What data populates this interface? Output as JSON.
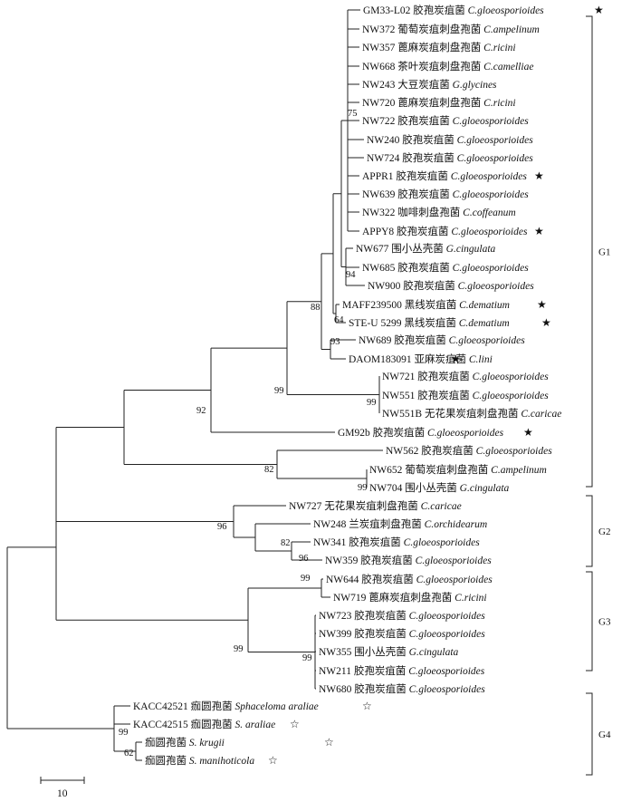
{
  "taxa": [
    {
      "id": "t0",
      "code": "GM33-L02",
      "cn": "胶孢炭疽菌",
      "sp": "C.gloeosporioides",
      "star": "★"
    },
    {
      "id": "t1",
      "code": "NW372",
      "cn": "葡萄炭疽刺盘孢菌",
      "sp": "C.ampelinum",
      "star": ""
    },
    {
      "id": "t2",
      "code": "NW357",
      "cn": "蓖麻炭疽刺盘孢菌",
      "sp": "C.ricini",
      "star": ""
    },
    {
      "id": "t3",
      "code": "NW668",
      "cn": "茶叶炭疽刺盘孢菌",
      "sp": "C.camelliae",
      "star": ""
    },
    {
      "id": "t4",
      "code": "NW243",
      "cn": "大豆炭疽菌",
      "sp": "G.glycines",
      "star": ""
    },
    {
      "id": "t5",
      "code": "NW720",
      "cn": "蓖麻炭疽刺盘孢菌",
      "sp": "C.ricini",
      "star": ""
    },
    {
      "id": "t6",
      "code": "NW722",
      "cn": "胶孢炭疽菌",
      "sp": "C.gloeosporioides",
      "star": ""
    },
    {
      "id": "t7",
      "code": "NW240",
      "cn": "胶孢炭疽菌",
      "sp": "C.gloeosporioides",
      "star": ""
    },
    {
      "id": "t8",
      "code": "NW724",
      "cn": "胶孢炭疽菌",
      "sp": "C.gloeosporioides",
      "star": ""
    },
    {
      "id": "t9",
      "code": "APPR1",
      "cn": "胶孢炭疽菌",
      "sp": "C.gloeosporioides",
      "star": "★"
    },
    {
      "id": "t10",
      "code": "NW639",
      "cn": "胶孢炭疽菌",
      "sp": "C.gloeosporioides",
      "star": ""
    },
    {
      "id": "t11",
      "code": "NW322",
      "cn": "咖啡刺盘孢菌",
      "sp": "C.coffeanum",
      "star": ""
    },
    {
      "id": "t12",
      "code": "APPY8",
      "cn": "胶孢炭疽菌",
      "sp": "C.gloeosporioides",
      "star": "★"
    },
    {
      "id": "t13",
      "code": "NW677",
      "cn": "围小丛壳菌",
      "sp": "G.cingulata",
      "star": ""
    },
    {
      "id": "t14",
      "code": "NW685",
      "cn": "胶孢炭疽菌",
      "sp": "C.gloeosporioides",
      "star": ""
    },
    {
      "id": "t15",
      "code": "NW900",
      "cn": "胶孢炭疽菌",
      "sp": "C.gloeosporioides",
      "star": ""
    },
    {
      "id": "t16",
      "code": "MAFF239500",
      "cn": "黑线炭疽菌",
      "sp": "C.dematium",
      "star": "★"
    },
    {
      "id": "t17",
      "code": "STE-U 5299",
      "cn": "黑线炭疽菌",
      "sp": "C.dematium",
      "star": "★"
    },
    {
      "id": "t18",
      "code": "NW689",
      "cn": "胶孢炭疽菌",
      "sp": "C.gloeosporioides",
      "star": ""
    },
    {
      "id": "t19",
      "code": "DAOM183091",
      "cn": "亚麻炭疽菌",
      "sp": "C.lini",
      "star": "★"
    },
    {
      "id": "t20",
      "code": "NW721",
      "cn": "胶孢炭疽菌",
      "sp": "C.gloeosporioides",
      "star": ""
    },
    {
      "id": "t21",
      "code": "NW551",
      "cn": "胶孢炭疽菌",
      "sp": "C.gloeosporioides",
      "star": ""
    },
    {
      "id": "t22",
      "code": "NW551B",
      "cn": "无花果炭疽刺盘孢菌",
      "sp": "C.caricae",
      "star": ""
    },
    {
      "id": "t23",
      "code": "GM92b",
      "cn": "胶孢炭疽菌",
      "sp": "C.gloeosporioides",
      "star": "★"
    },
    {
      "id": "t24",
      "code": "NW562",
      "cn": "胶孢炭疽菌",
      "sp": "C.gloeosporioides",
      "star": ""
    },
    {
      "id": "t25",
      "code": "NW652",
      "cn": "葡萄炭疽刺盘孢菌",
      "sp": "C.ampelinum",
      "star": ""
    },
    {
      "id": "t26",
      "code": "NW704",
      "cn": "围小丛壳菌",
      "sp": "G.cingulata",
      "star": ""
    },
    {
      "id": "t27",
      "code": "NW727",
      "cn": "无花果炭疽刺盘孢菌",
      "sp": "C.caricae",
      "star": ""
    },
    {
      "id": "t28",
      "code": "NW248",
      "cn": "兰炭疽刺盘孢菌",
      "sp": "C.orchidearum",
      "star": ""
    },
    {
      "id": "t29",
      "code": "NW341",
      "cn": "胶孢炭疽菌",
      "sp": "C.gloeosporioides",
      "star": ""
    },
    {
      "id": "t30",
      "code": "NW359",
      "cn": "胶孢炭疽菌",
      "sp": "C.gloeosporioides",
      "star": ""
    },
    {
      "id": "t31",
      "code": "NW644",
      "cn": "胶孢炭疽菌",
      "sp": "C.gloeosporioides",
      "star": ""
    },
    {
      "id": "t32",
      "code": "NW719",
      "cn": "蓖麻炭疽刺盘孢菌",
      "sp": "C.ricini",
      "star": ""
    },
    {
      "id": "t33",
      "code": "NW723",
      "cn": "胶孢炭疽菌",
      "sp": "C.gloeosporioides",
      "star": ""
    },
    {
      "id": "t34",
      "code": "NW399",
      "cn": "胶孢炭疽菌",
      "sp": "C.gloeosporioides",
      "star": ""
    },
    {
      "id": "t35",
      "code": "NW355",
      "cn": "围小丛壳菌",
      "sp": "G.cingulata",
      "star": ""
    },
    {
      "id": "t36",
      "code": "NW211",
      "cn": "胶孢炭疽菌",
      "sp": "C.gloeosporioides",
      "star": ""
    },
    {
      "id": "t37",
      "code": "NW680",
      "cn": "胶孢炭疽菌",
      "sp": "C.gloeosporioides",
      "star": ""
    },
    {
      "id": "t38",
      "code": "KACC42521",
      "cn": "痂圆孢菌",
      "sp": "Sphaceloma araliae",
      "star": "☆"
    },
    {
      "id": "t39",
      "code": "KACC42515",
      "cn": "痂圆孢菌",
      "sp": "S. araliae",
      "star": "☆"
    },
    {
      "id": "t40",
      "code": "",
      "cn": "痂圆孢菌",
      "sp": "S. krugii",
      "star": "☆"
    },
    {
      "id": "t41",
      "code": "",
      "cn": "痂圆孢菌",
      "sp": "S. manihoticola",
      "star": "☆"
    }
  ],
  "bootstrap": [
    {
      "id": "b75",
      "value": "75"
    },
    {
      "id": "b94",
      "value": "94"
    },
    {
      "id": "b64",
      "value": "64"
    },
    {
      "id": "b88",
      "value": "88"
    },
    {
      "id": "b93",
      "value": "93"
    },
    {
      "id": "b99a",
      "value": "99"
    },
    {
      "id": "b99b",
      "value": "99"
    },
    {
      "id": "b92",
      "value": "92"
    },
    {
      "id": "b82a",
      "value": "82"
    },
    {
      "id": "b99c",
      "value": "99"
    },
    {
      "id": "b96",
      "value": "96"
    },
    {
      "id": "b82b",
      "value": "82"
    },
    {
      "id": "b96b",
      "value": "96"
    },
    {
      "id": "b99d",
      "value": "99"
    },
    {
      "id": "b99e",
      "value": "99"
    },
    {
      "id": "b99f",
      "value": "99"
    },
    {
      "id": "b99g",
      "value": "99"
    },
    {
      "id": "b62",
      "value": "62"
    }
  ],
  "groups": [
    {
      "id": "G1",
      "label": "G1"
    },
    {
      "id": "G2",
      "label": "G2"
    },
    {
      "id": "G3",
      "label": "G3"
    },
    {
      "id": "G4",
      "label": "G4"
    }
  ],
  "scale_bar": {
    "label": "10"
  }
}
